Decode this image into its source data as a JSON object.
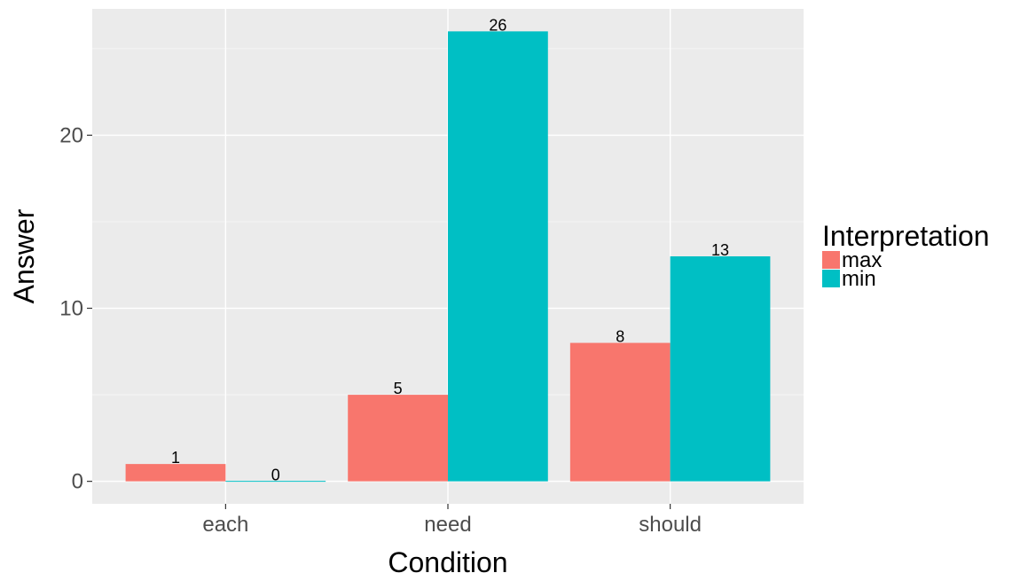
{
  "chart_data": {
    "type": "bar",
    "categories": [
      "each",
      "need",
      "should"
    ],
    "series": [
      {
        "name": "max",
        "values": [
          1,
          5,
          8
        ],
        "color": "#F8766D"
      },
      {
        "name": "min",
        "values": [
          0,
          26,
          13
        ],
        "color": "#00BFC4"
      }
    ],
    "xlabel": "Condition",
    "ylabel": "Answer",
    "ylim": [
      -1.3,
      27.3
    ],
    "yticks": [
      0,
      10,
      20
    ],
    "legend_title": "Interpretation",
    "legend_position": "right",
    "grid": true,
    "panel_background": "#EBEBEB",
    "grid_color": "#FFFFFF"
  }
}
